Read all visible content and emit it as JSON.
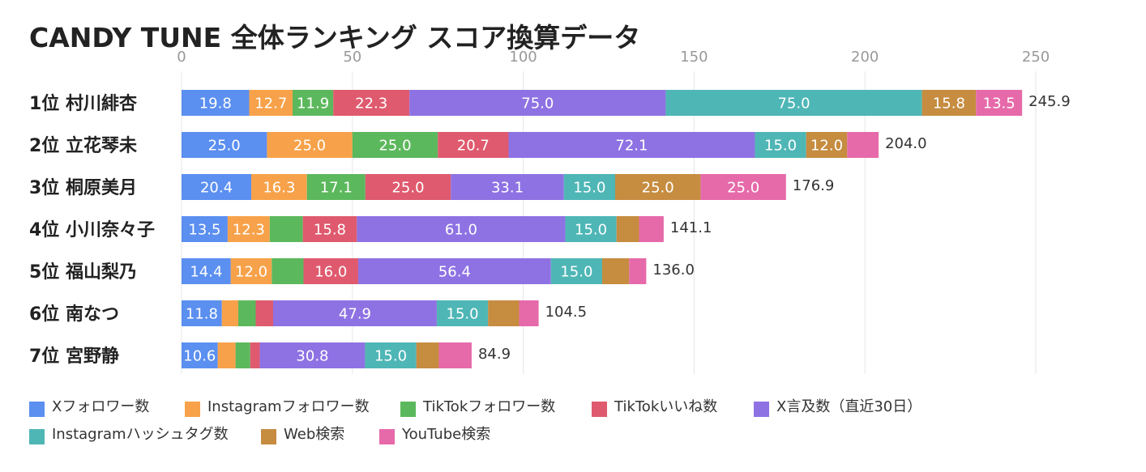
{
  "chart_data": {
    "type": "bar",
    "orientation": "horizontal",
    "stacked": true,
    "title": "CANDY TUNE 全体ランキング スコア換算データ",
    "xlim": [
      0,
      250
    ],
    "xticks": [
      "0",
      "50",
      "100",
      "150",
      "200",
      "250"
    ],
    "grid": true,
    "legend_position": "bottom",
    "categories": [
      "1位 村川緋杏",
      "2位 立花琴未",
      "3位 桐原美月",
      "4位 小川奈々子",
      "5位 福山梨乃",
      "6位 南なつ",
      "7位 宮野静"
    ],
    "series": [
      {
        "name": "Xフォロワー数",
        "color": "#5b8ff0",
        "values": [
          19.8,
          25.0,
          20.4,
          13.5,
          14.4,
          11.8,
          10.6
        ],
        "labels": [
          "19.8",
          "25.0",
          "20.4",
          "13.5",
          "14.4",
          "11.8",
          "10.6"
        ]
      },
      {
        "name": "Instagramフォロワー数",
        "color": "#f7a24a",
        "values": [
          12.7,
          25.0,
          16.3,
          12.3,
          12.0,
          4.8,
          5.2
        ],
        "labels": [
          "12.7",
          "25.0",
          "16.3",
          "12.3",
          "12.0",
          "",
          ""
        ]
      },
      {
        "name": "TikTokフォロワー数",
        "color": "#5cb85c",
        "values": [
          11.9,
          25.0,
          17.1,
          9.7,
          9.3,
          5.1,
          4.3
        ],
        "labels": [
          "11.9",
          "25.0",
          "17.1",
          "",
          "",
          "",
          ""
        ]
      },
      {
        "name": "TikTokいいね数",
        "color": "#df5a6e",
        "values": [
          22.3,
          20.7,
          25.0,
          15.8,
          16.0,
          5.1,
          2.8
        ],
        "labels": [
          "22.3",
          "20.7",
          "25.0",
          "15.8",
          "16.0",
          "",
          ""
        ]
      },
      {
        "name": "X言及数（直近30日）",
        "color": "#8e72e3",
        "values": [
          75.0,
          72.1,
          33.1,
          61.0,
          56.4,
          47.9,
          30.8
        ],
        "labels": [
          "75.0",
          "72.1",
          "33.1",
          "61.0",
          "56.4",
          "47.9",
          "30.8"
        ]
      },
      {
        "name": "Instagramハッシュタグ数",
        "color": "#4fb6b6",
        "values": [
          75.0,
          15.0,
          15.0,
          15.0,
          15.0,
          15.0,
          15.0
        ],
        "labels": [
          "75.0",
          "15.0",
          "15.0",
          "15.0",
          "15.0",
          "15.0",
          "15.0"
        ]
      },
      {
        "name": "Web検索",
        "color": "#c68c40",
        "values": [
          15.8,
          12.0,
          25.0,
          6.6,
          7.9,
          9.1,
          6.6
        ],
        "labels": [
          "15.8",
          "12.0",
          "25.0",
          "",
          "",
          "",
          ""
        ]
      },
      {
        "name": "YouTube検索",
        "color": "#e66aa9",
        "values": [
          13.5,
          9.2,
          25.0,
          7.2,
          5.0,
          5.7,
          9.6
        ],
        "labels": [
          "13.5",
          "",
          "25.0",
          "",
          "",
          "",
          ""
        ]
      }
    ],
    "totals": [
      "245.9",
      "204.0",
      "176.9",
      "141.1",
      "136.0",
      "104.5",
      "84.9"
    ]
  }
}
